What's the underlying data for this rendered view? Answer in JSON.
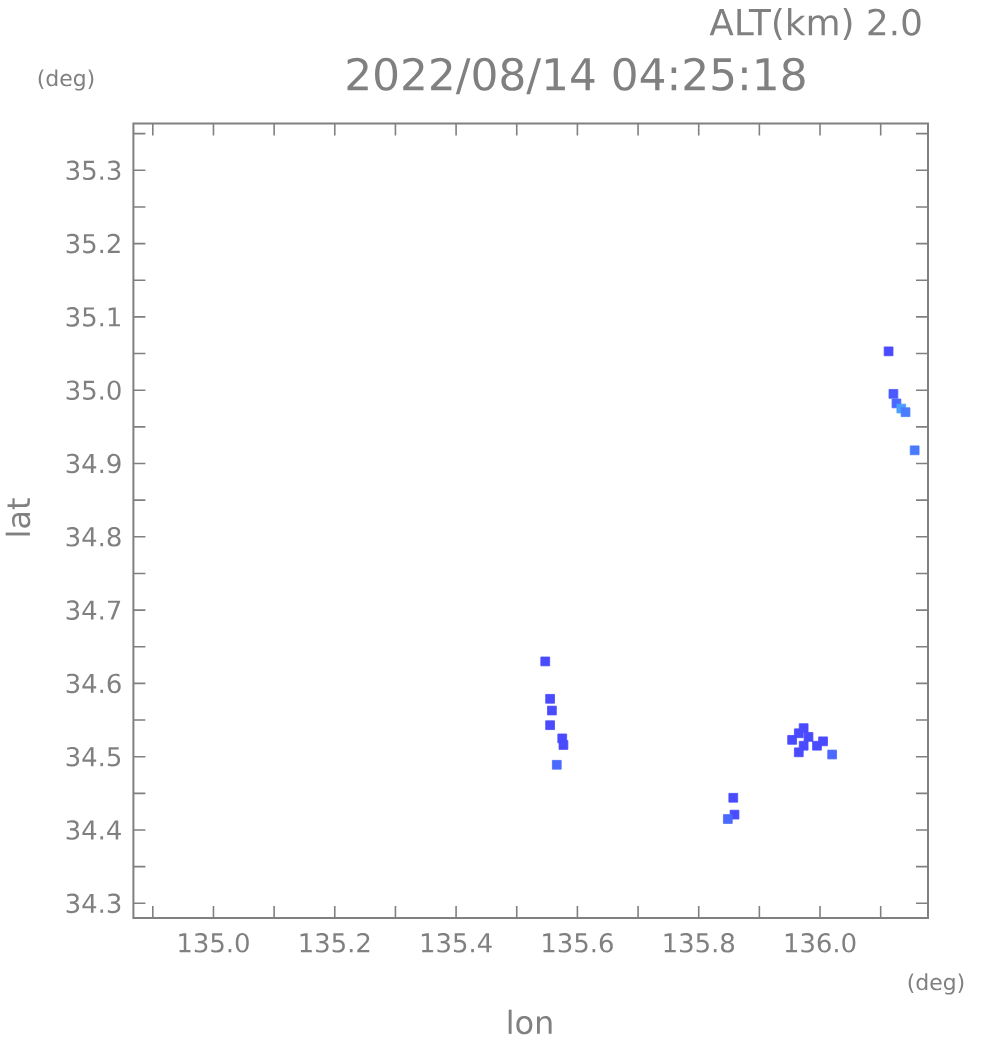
{
  "chart_data": {
    "type": "scatter",
    "title": "2022/08/14 04:25:18",
    "xlabel": "lon",
    "ylabel": "lat",
    "annotations": [
      "ALT(km) 2.0",
      "(deg)",
      "(deg)"
    ],
    "marker": "square",
    "x": [
      136.113,
      136.121,
      136.126,
      136.134,
      136.141,
      136.156,
      135.547,
      135.555,
      135.558,
      135.555,
      135.575,
      135.577,
      135.566,
      135.857,
      135.859,
      135.848,
      135.954,
      135.965,
      135.973,
      135.981,
      135.973,
      135.965,
      135.995,
      136.005,
      136.02
    ],
    "values": [
      35.053,
      34.995,
      34.982,
      34.975,
      34.97,
      34.918,
      34.63,
      34.579,
      34.563,
      34.543,
      34.525,
      34.516,
      34.489,
      34.444,
      34.421,
      34.415,
      34.523,
      34.532,
      34.539,
      34.527,
      34.515,
      34.506,
      34.515,
      34.521,
      34.503
    ],
    "colors": [
      "#4a4aff",
      "#4a5aff",
      "#4a6aff",
      "#4aa0ff",
      "#4a7cff",
      "#4a7aff",
      "#4a4aff",
      "#4a4aff",
      "#4a4aff",
      "#4a4aff",
      "#4a4aff",
      "#4a4aff",
      "#4a6aff",
      "#4a4aff",
      "#4a4aff",
      "#4a6aff",
      "#4a4aff",
      "#4a4aff",
      "#4a4aff",
      "#4a4aff",
      "#4a4aff",
      "#4a4aff",
      "#4a4aff",
      "#4a4aff",
      "#4a6aff"
    ],
    "xlim": [
      134.868,
      136.178
    ],
    "ylim": [
      34.28,
      35.364
    ],
    "xticks": [
      {
        "value": 134.9,
        "label": null
      },
      {
        "value": 135.0,
        "label": "135.0"
      },
      {
        "value": 135.1,
        "label": null
      },
      {
        "value": 135.2,
        "label": "135.2"
      },
      {
        "value": 135.3,
        "label": null
      },
      {
        "value": 135.4,
        "label": "135.4"
      },
      {
        "value": 135.5,
        "label": null
      },
      {
        "value": 135.6,
        "label": "135.6"
      },
      {
        "value": 135.7,
        "label": null
      },
      {
        "value": 135.8,
        "label": "135.8"
      },
      {
        "value": 135.9,
        "label": null
      },
      {
        "value": 136.0,
        "label": "136.0"
      },
      {
        "value": 136.1,
        "label": null
      }
    ],
    "yticks": [
      {
        "value": 34.3,
        "label": "34.3"
      },
      {
        "value": 34.35,
        "label": null
      },
      {
        "value": 34.4,
        "label": "34.4"
      },
      {
        "value": 34.45,
        "label": null
      },
      {
        "value": 34.5,
        "label": "34.5"
      },
      {
        "value": 34.55,
        "label": null
      },
      {
        "value": 34.6,
        "label": "34.6"
      },
      {
        "value": 34.65,
        "label": null
      },
      {
        "value": 34.7,
        "label": "34.7"
      },
      {
        "value": 34.75,
        "label": null
      },
      {
        "value": 34.8,
        "label": "34.8"
      },
      {
        "value": 34.85,
        "label": null
      },
      {
        "value": 34.9,
        "label": "34.9"
      },
      {
        "value": 34.95,
        "label": null
      },
      {
        "value": 35.0,
        "label": "35.0"
      },
      {
        "value": 35.05,
        "label": null
      },
      {
        "value": 35.1,
        "label": "35.1"
      },
      {
        "value": 35.15,
        "label": null
      },
      {
        "value": 35.2,
        "label": "35.2"
      },
      {
        "value": 35.25,
        "label": null
      },
      {
        "value": 35.3,
        "label": "35.3"
      },
      {
        "value": 35.35,
        "label": null
      }
    ]
  }
}
